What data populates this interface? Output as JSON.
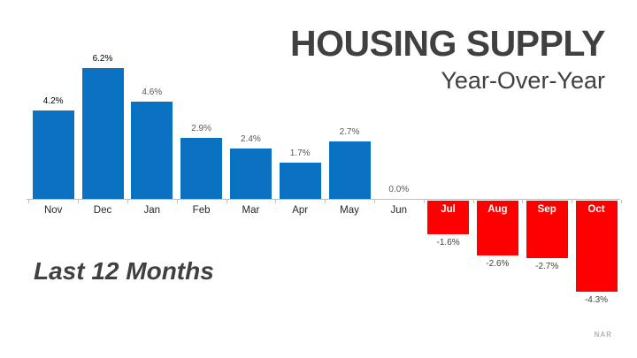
{
  "header": {
    "title": "HOUSING SUPPLY",
    "subtitle": "Year-Over-Year"
  },
  "caption": "Last 12 Months",
  "attribution": "NAR",
  "chart_data": {
    "type": "bar",
    "title": "HOUSING SUPPLY Year-Over-Year",
    "xlabel": "",
    "ylabel": "",
    "ylim": [
      -5,
      7
    ],
    "grid": false,
    "legend": false,
    "categories": [
      "Nov",
      "Dec",
      "Jan",
      "Feb",
      "Mar",
      "Apr",
      "May",
      "Jun",
      "Jul",
      "Aug",
      "Sep",
      "Oct"
    ],
    "values": [
      4.2,
      6.2,
      4.6,
      2.9,
      2.4,
      1.7,
      2.7,
      0.0,
      -1.6,
      -2.6,
      -2.7,
      -4.3
    ],
    "value_labels": [
      "4.2%",
      "6.2%",
      "4.6%",
      "2.9%",
      "2.4%",
      "1.7%",
      "2.7%",
      "0.0%",
      "-1.6%",
      "-2.6%",
      "-2.7%",
      "-4.3%"
    ],
    "label_colors": [
      "#000000",
      "#000000",
      "#595959",
      "#595959",
      "#595959",
      "#595959",
      "#595959",
      "#595959",
      "#404040",
      "#404040",
      "#404040",
      "#404040"
    ],
    "styles": {
      "positive_bar_color": "#0b72c2",
      "negative_bar_color": "#ff0000",
      "positive_month_label_color": "#262626",
      "negative_month_label_color": "#ffffff",
      "axis_color": "#bfbfbf"
    }
  }
}
